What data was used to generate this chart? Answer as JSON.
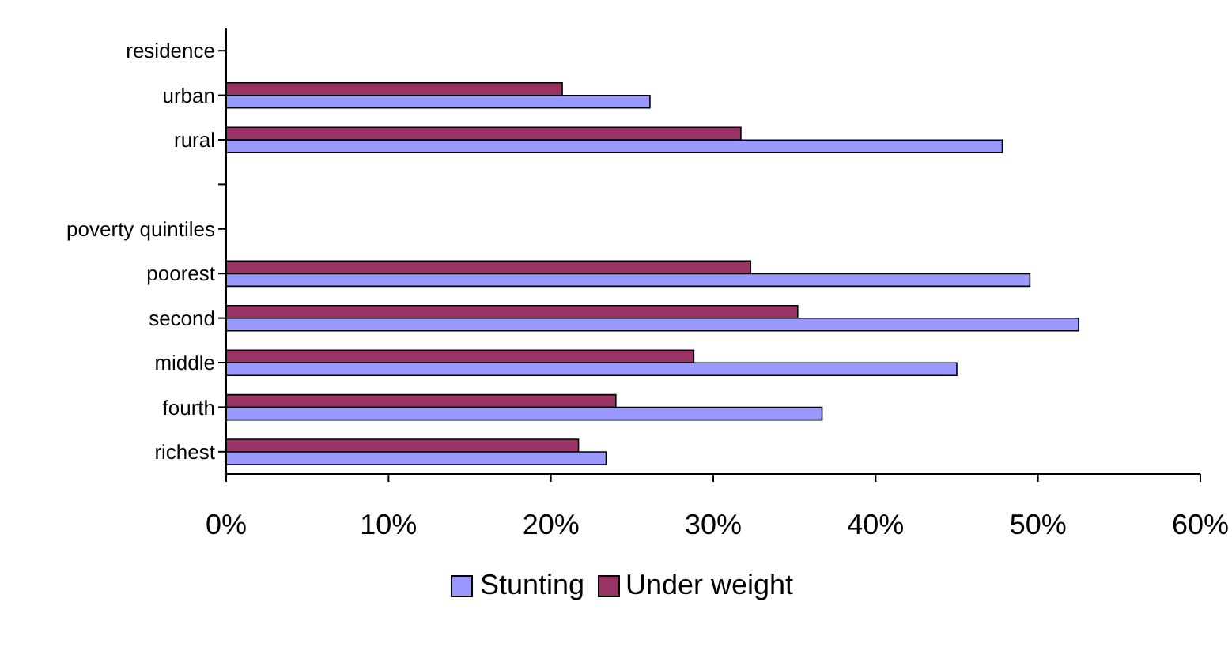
{
  "chart_data": {
    "type": "bar",
    "orientation": "horizontal",
    "categories": [
      "residence",
      "urban",
      "rural",
      null,
      "poverty quintiles",
      "poorest",
      "second",
      "middle",
      "fourth",
      "richest"
    ],
    "series": [
      {
        "name": "Stunting",
        "color": "#9999ff",
        "values": [
          null,
          26.1,
          47.8,
          null,
          null,
          49.5,
          52.5,
          45.0,
          36.7,
          23.4
        ]
      },
      {
        "name": "Under weight",
        "color": "#993366",
        "values": [
          null,
          20.7,
          31.7,
          null,
          null,
          32.3,
          35.2,
          28.8,
          24.0,
          21.7
        ]
      }
    ],
    "xlim": [
      0,
      60
    ],
    "xticks": [
      {
        "value": 0,
        "label": "0%"
      },
      {
        "value": 10,
        "label": "10%"
      },
      {
        "value": 20,
        "label": "20%"
      },
      {
        "value": 30,
        "label": "30%"
      },
      {
        "value": 40,
        "label": "40%"
      },
      {
        "value": 50,
        "label": "50%"
      },
      {
        "value": 60,
        "label": "60%"
      }
    ],
    "grid": false,
    "legend": "bottom"
  }
}
